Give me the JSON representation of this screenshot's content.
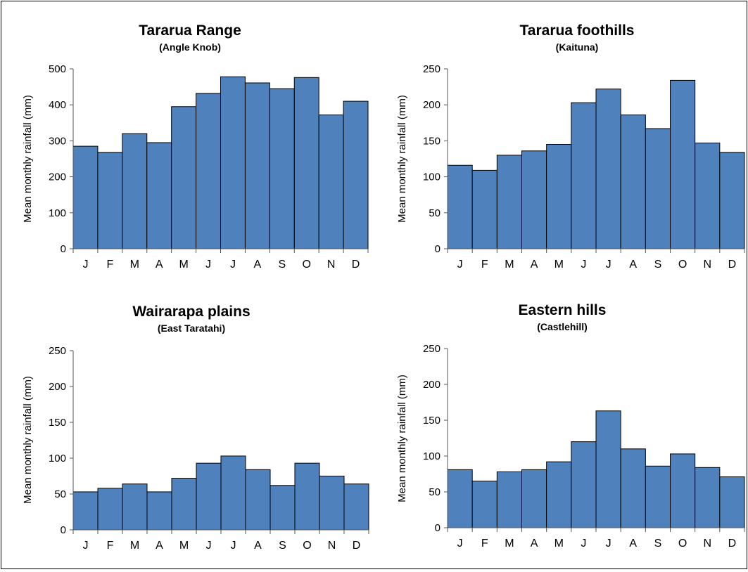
{
  "chart_data": [
    {
      "type": "bar",
      "title": "Tararua Range",
      "subtitle": "(Angle Knob)",
      "ylabel": "Mean monthly rainfall (mm)",
      "categories": [
        "J",
        "F",
        "M",
        "A",
        "M",
        "J",
        "J",
        "A",
        "S",
        "O",
        "N",
        "D"
      ],
      "values": [
        285,
        268,
        320,
        295,
        395,
        432,
        478,
        461,
        445,
        476,
        372,
        410
      ],
      "ylim": [
        0,
        500
      ],
      "yticks": [
        0,
        100,
        200,
        300,
        400,
        500
      ],
      "bar_color": "#4f81bd",
      "grid": false
    },
    {
      "type": "bar",
      "title": "Tararua foothills",
      "subtitle": "(Kaituna)",
      "ylabel": "Mean monthly rainfall (mm)",
      "categories": [
        "J",
        "F",
        "M",
        "A",
        "M",
        "J",
        "J",
        "A",
        "S",
        "O",
        "N",
        "D"
      ],
      "values": [
        116,
        109,
        130,
        136,
        145,
        203,
        222,
        186,
        167,
        234,
        147,
        134
      ],
      "ylim": [
        0,
        250
      ],
      "yticks": [
        0,
        50,
        100,
        150,
        200,
        250
      ],
      "bar_color": "#4f81bd",
      "grid": false
    },
    {
      "type": "bar",
      "title": "Wairarapa plains",
      "subtitle": "(East Taratahi)",
      "ylabel": "Mean monthly rainfall (mm)",
      "categories": [
        "J",
        "F",
        "M",
        "A",
        "M",
        "J",
        "J",
        "A",
        "S",
        "O",
        "N",
        "D"
      ],
      "values": [
        53,
        58,
        64,
        53,
        72,
        93,
        103,
        84,
        62,
        93,
        75,
        64
      ],
      "ylim": [
        0,
        250
      ],
      "yticks": [
        0,
        50,
        100,
        150,
        200,
        250
      ],
      "bar_color": "#4f81bd",
      "grid": false
    },
    {
      "type": "bar",
      "title": "Eastern hills",
      "subtitle": "(Castlehill)",
      "ylabel": "Mean monthly rainfall (mm)",
      "categories": [
        "J",
        "F",
        "M",
        "A",
        "M",
        "J",
        "J",
        "A",
        "S",
        "O",
        "N",
        "D"
      ],
      "values": [
        81,
        65,
        78,
        81,
        92,
        120,
        163,
        110,
        86,
        103,
        84,
        71
      ],
      "ylim": [
        0,
        250
      ],
      "yticks": [
        0,
        50,
        100,
        150,
        200,
        250
      ],
      "bar_color": "#4f81bd",
      "grid": false
    }
  ]
}
